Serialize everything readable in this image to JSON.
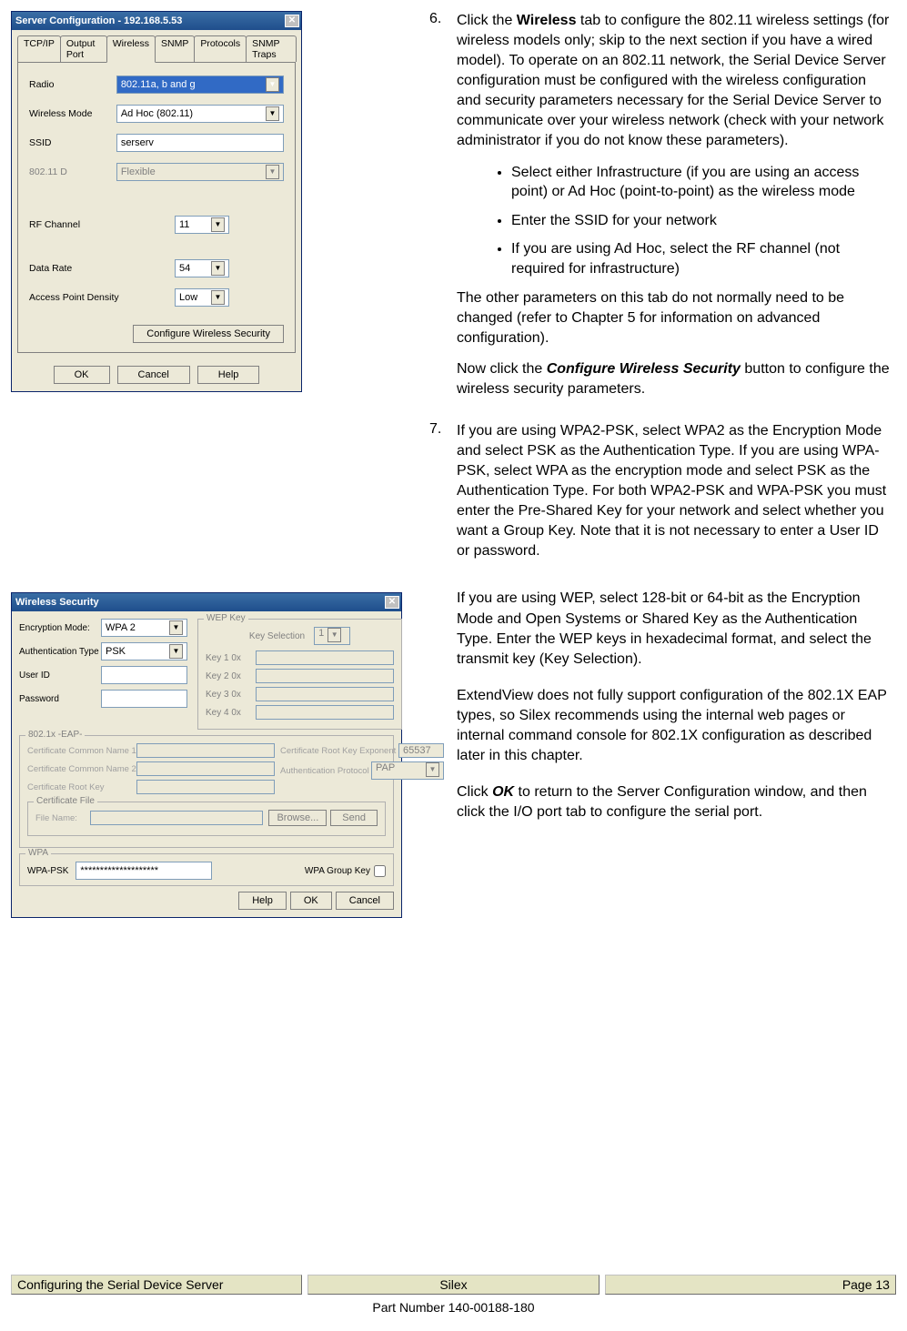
{
  "win1": {
    "title": "Server Configuration - 192.168.5.53",
    "tabs": [
      "TCP/IP",
      "Output Port",
      "Wireless",
      "SNMP",
      "Protocols",
      "SNMP Traps"
    ],
    "active_tab": 2,
    "fields": {
      "radio_label": "Radio",
      "radio_value": "802.11a, b and g",
      "mode_label": "Wireless Mode",
      "mode_value": "Ad Hoc (802.11)",
      "ssid_label": "SSID",
      "ssid_value": "serserv",
      "d_label": "802.11 D",
      "d_value": "Flexible",
      "rf_label": "RF Channel",
      "rf_value": "11",
      "rate_label": "Data Rate",
      "rate_value": "54",
      "ap_label": "Access Point Density",
      "ap_value": "Low",
      "cfg_sec_btn": "Configure Wireless Security"
    },
    "buttons": {
      "ok": "OK",
      "cancel": "Cancel",
      "help": "Help"
    }
  },
  "win2": {
    "title": "Wireless Security",
    "fields": {
      "enc_label": "Encryption Mode:",
      "enc_value": "WPA 2",
      "auth_label": "Authentication Type",
      "auth_value": "PSK",
      "user_label": "User ID",
      "user_value": "",
      "pass_label": "Password",
      "pass_value": ""
    },
    "wep": {
      "group": "WEP Key",
      "sel_label": "Key Selection",
      "sel_value": "1",
      "k1": "Key 1   0x",
      "k2": "Key 2   0x",
      "k3": "Key 3   0x",
      "k4": "Key 4   0x"
    },
    "eap": {
      "group": "802.1x -EAP-",
      "cn1": "Certificate Common Name 1",
      "cn2": "Certificate Common Name 2",
      "rootkey": "Certificate Root Key",
      "exp_label": "Certificate Root Key Exponent",
      "exp_value": "65537",
      "authp_label": "Authentication Protocol",
      "authp_value": "PAP",
      "cert_file": "Certificate File",
      "file_label": "File Name:",
      "browse": "Browse...",
      "send": "Send"
    },
    "wpa": {
      "group": "WPA",
      "psk_label": "WPA-PSK",
      "psk_value": "********************",
      "gk_label": "WPA Group Key"
    },
    "buttons": {
      "help": "Help",
      "ok": "OK",
      "cancel": "Cancel"
    }
  },
  "text": {
    "step6_n": "6.",
    "step6": "Click the <b>Wireless</b> tab to configure the 802.11 wireless settings (for wireless models only; skip to the next section if you have a wired model).  To operate on an 802.11 network, the Serial Device Server configuration must be configured with the wireless configuration and security parameters necessary for the Serial Device Server to communicate over your wireless network (check with your network administrator if you do not know these parameters).",
    "bul1": "Select either Infrastructure (if you are using an access point) or Ad Hoc (point-to-point) as the wireless mode",
    "bul2": "Enter the SSID for your network",
    "bul3": "If you are using Ad Hoc, select the RF channel (not required for infrastructure)",
    "p_other": "The other parameters on this tab do not normally need to be changed (refer to Chapter 5 for information on advanced configuration).",
    "p_now": "Now click the <span class='bi'>Configure Wireless Security</span> button to configure the wireless security parameters.",
    "step7_n": "7.",
    "step7": "If you are using WPA2-PSK, select WPA2 as the Encryption Mode and select PSK as the Authentication Type.  If you are using WPA-PSK, select WPA as the encryption mode and select PSK as the Authentication Type.  For both WPA2-PSK and WPA-PSK you must enter the Pre-Shared Key for your network and select whether you want a Group Key.  Note that it is not necessary to enter a User ID or password.",
    "p_wep": "If you are using WEP, select 128-bit or 64-bit as the Encryption Mode and Open Systems or Shared Key as the Authentication Type.  Enter the WEP keys in hexadecimal format, and select the transmit key (Key Selection).",
    "p_ext": "ExtendView does not fully support configuration of the 802.1X EAP types, so Silex recommends using the internal web pages or internal command console for 802.1X configuration as described later in this chapter.",
    "p_ok": "Click <span class='bi'>OK</span> to return to the Server Configuration window, and then click the I/O port tab to configure the serial port."
  },
  "footer": {
    "left": "Configuring the Serial Device Server",
    "center": "Silex",
    "right": "Page 13",
    "part": "Part Number 140-00188-180"
  }
}
